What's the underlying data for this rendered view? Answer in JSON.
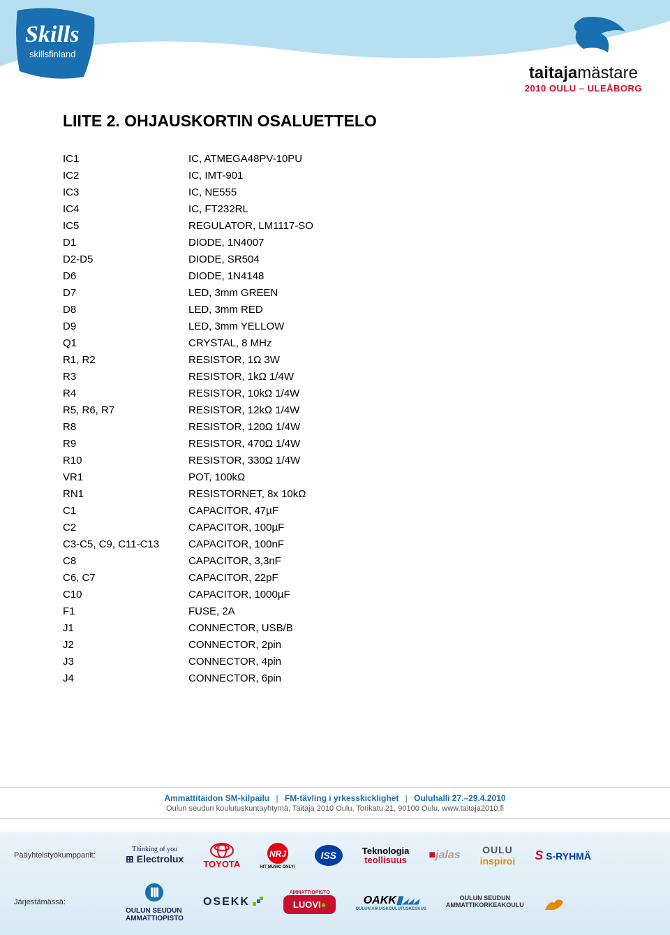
{
  "header": {
    "skills_text": "skillsfinland",
    "brand_bold": "taitaja",
    "brand_light": "mästare",
    "brand_sub": "2010 OULU – ULEÅBORG",
    "curve_color": "#b7dff2",
    "logo_bg_color": "#1a6fb0",
    "swoosh_color": "#1a6fb0",
    "sub_color": "#c8102e"
  },
  "title": "LIITE 2. OHJAUSKORTIN OSALUETTELO",
  "parts": [
    {
      "ref": "IC1",
      "desc": "IC, ATMEGA48PV-10PU"
    },
    {
      "ref": "IC2",
      "desc": "IC, IMT-901"
    },
    {
      "ref": "IC3",
      "desc": "IC, NE555"
    },
    {
      "ref": "IC4",
      "desc": "IC, FT232RL"
    },
    {
      "ref": "IC5",
      "desc": "REGULATOR, LM1117-SO"
    },
    {
      "ref": "D1",
      "desc": "DIODE, 1N4007"
    },
    {
      "ref": "D2-D5",
      "desc": "DIODE, SR504"
    },
    {
      "ref": "D6",
      "desc": "DIODE, 1N4148"
    },
    {
      "ref": "D7",
      "desc": "LED, 3mm GREEN"
    },
    {
      "ref": "D8",
      "desc": "LED, 3mm RED"
    },
    {
      "ref": "D9",
      "desc": "LED, 3mm YELLOW"
    },
    {
      "ref": "Q1",
      "desc": "CRYSTAL, 8 MHz"
    },
    {
      "ref": "R1, R2",
      "desc": "RESISTOR, 1Ω 3W"
    },
    {
      "ref": "R3",
      "desc": "RESISTOR, 1kΩ 1/4W"
    },
    {
      "ref": "R4",
      "desc": "RESISTOR, 10kΩ 1/4W"
    },
    {
      "ref": "R5, R6, R7",
      "desc": "RESISTOR, 12kΩ 1/4W"
    },
    {
      "ref": "R8",
      "desc": "RESISTOR, 120Ω 1/4W"
    },
    {
      "ref": "R9",
      "desc": "RESISTOR, 470Ω 1/4W"
    },
    {
      "ref": "R10",
      "desc": "RESISTOR, 330Ω 1/4W"
    },
    {
      "ref": "VR1",
      "desc": "POT, 100kΩ"
    },
    {
      "ref": "RN1",
      "desc": "RESISTORNET, 8x 10kΩ"
    },
    {
      "ref": "C1",
      "desc": "CAPACITOR, 47µF"
    },
    {
      "ref": "C2",
      "desc": "CAPACITOR, 100µF"
    },
    {
      "ref": "C3-C5, C9, C11-C13",
      "desc": "CAPACITOR, 100nF"
    },
    {
      "ref": "C8",
      "desc": "CAPACITOR, 3,3nF"
    },
    {
      "ref": "C6, C7",
      "desc": "CAPACITOR, 22pF"
    },
    {
      "ref": "C10",
      "desc": "CAPACITOR, 1000µF"
    },
    {
      "ref": "F1",
      "desc": "FUSE, 2A"
    },
    {
      "ref": "J1",
      "desc": "CONNECTOR, USB/B"
    },
    {
      "ref": "J2",
      "desc": "CONNECTOR, 2pin"
    },
    {
      "ref": "J3",
      "desc": "CONNECTOR, 4pin"
    },
    {
      "ref": "J4",
      "desc": "CONNECTOR, 6pin"
    }
  ],
  "footer": {
    "info_segments": [
      "Ammattitaidon SM-kilpailu",
      "FM-tävling i yrkesskicklighet",
      "Ouluhalli 27.–29.4.2010"
    ],
    "info_line2": "Oulun seudun koulutuskuntayhtymä, Taitaja 2010 Oulu, Torikatu 21, 90100 Oulu, www.taitaja2010.fi",
    "row1_label": "Pääyhteistyökumppanit:",
    "row2_label": "Järjestämässä:",
    "band_bg_top": "#e9f3fa",
    "band_bg_bottom": "#d8eaf6",
    "electrolux_tag": "Thinking of you",
    "electrolux": "Electrolux",
    "toyota": "TOYOTA",
    "nrj": "NRJ",
    "iss": "ISS",
    "tekno1": "Teknologia",
    "tekno2": "teollisuus",
    "jalas": "jalas",
    "oulu1": "OULU",
    "oulu2": "inspiroi",
    "sryhma": "S-RYHMÄ",
    "osao1": "OULUN SEUDUN",
    "osao2": "AMMATTIOPISTO",
    "osekk": "OSEKK",
    "luovi": "LUOVI",
    "luovi_tag": "AMMATTIOPISTO",
    "oakk": "OAKK",
    "oakk_sub": "OULUN AIKUISKOULUTUSKESKUS",
    "oamk1": "OULUN SEUDUN",
    "oamk2": "AMMATTIKORKEAKOULU"
  }
}
